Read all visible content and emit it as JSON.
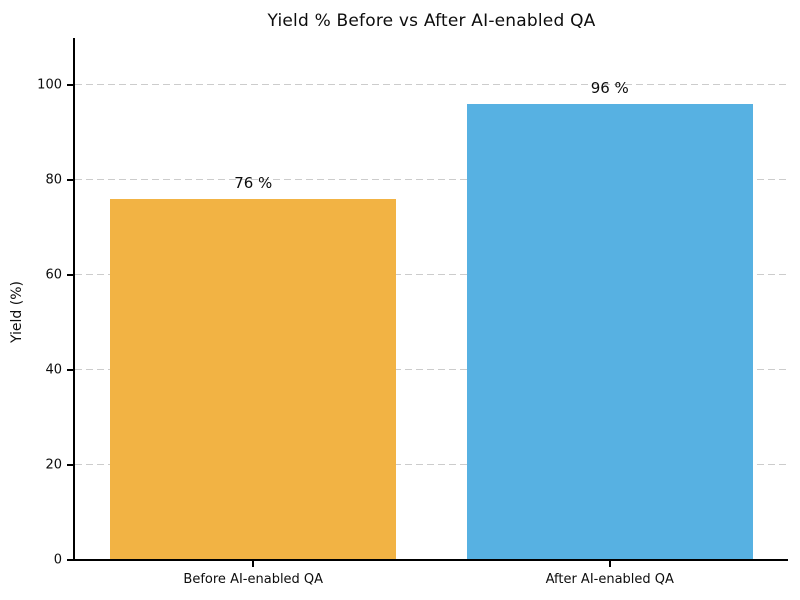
{
  "chart_data": {
    "type": "bar",
    "title": "Yield % Before vs After AI-enabled QA",
    "categories": [
      "Before AI-enabled QA",
      "After AI-enabled QA"
    ],
    "values": [
      76,
      96
    ],
    "bar_labels": [
      "76 %",
      "96 %"
    ],
    "bar_colors": [
      "#F2B344",
      "#57B1E2"
    ],
    "xlabel": "",
    "ylabel": "Yield (%)",
    "ylim": [
      0,
      110
    ],
    "yticks": [
      0,
      20,
      40,
      60,
      80,
      100
    ],
    "grid": "horizontal dashed",
    "grid_color": "#cccccc",
    "axis_color": "#000000",
    "background_color": "#ffffff",
    "legend": "none"
  }
}
